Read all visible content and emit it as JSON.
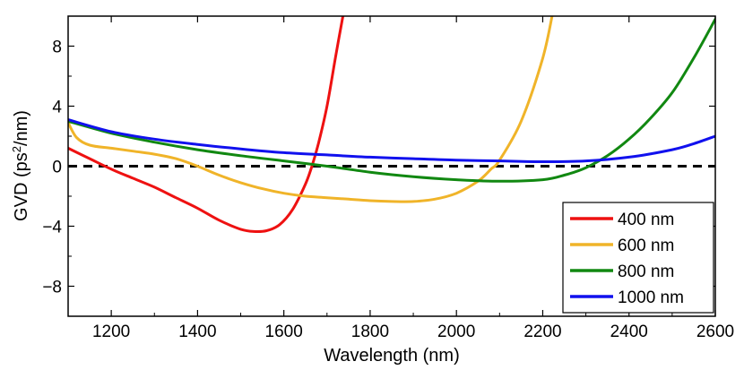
{
  "chart_data": {
    "type": "line",
    "title": "",
    "xlabel": "Wavelength (nm)",
    "ylabel_main": "GVD (ps",
    "ylabel_sup": "2",
    "ylabel_tail": "/nm)",
    "xlim": [
      1100,
      2600
    ],
    "ylim": [
      -10,
      10
    ],
    "x_ticks": [
      1200,
      1400,
      1600,
      1800,
      2000,
      2200,
      2400,
      2600
    ],
    "x_tick_labels": [
      "1200",
      "1400",
      "1600",
      "1800",
      "2000",
      "2200",
      "2400",
      "2600"
    ],
    "y_ticks": [
      -8,
      -4,
      0,
      4,
      8
    ],
    "y_tick_labels": [
      "−8",
      "−4",
      "0",
      "4",
      "8"
    ],
    "grid": false,
    "zero_line": {
      "y": 0,
      "style": "dashed",
      "color": "#000000"
    },
    "legend_position": "bottom-right",
    "series": [
      {
        "name": "400 nm",
        "color": "#ee1111",
        "points": [
          [
            1100,
            1.2
          ],
          [
            1150,
            0.5
          ],
          [
            1200,
            -0.2
          ],
          [
            1250,
            -0.8
          ],
          [
            1300,
            -1.4
          ],
          [
            1350,
            -2.1
          ],
          [
            1400,
            -2.8
          ],
          [
            1450,
            -3.6
          ],
          [
            1500,
            -4.2
          ],
          [
            1530,
            -4.35
          ],
          [
            1560,
            -4.3
          ],
          [
            1590,
            -3.9
          ],
          [
            1620,
            -2.9
          ],
          [
            1650,
            -1.2
          ],
          [
            1665,
            0
          ],
          [
            1680,
            1.5
          ],
          [
            1700,
            4.0
          ],
          [
            1720,
            7.3
          ],
          [
            1740,
            10.5
          ]
        ]
      },
      {
        "name": "600 nm",
        "color": "#f0b429",
        "points": [
          [
            1100,
            2.9
          ],
          [
            1120,
            1.9
          ],
          [
            1150,
            1.4
          ],
          [
            1200,
            1.2
          ],
          [
            1250,
            1.0
          ],
          [
            1300,
            0.8
          ],
          [
            1350,
            0.5
          ],
          [
            1400,
            0.0
          ],
          [
            1450,
            -0.6
          ],
          [
            1500,
            -1.1
          ],
          [
            1550,
            -1.5
          ],
          [
            1600,
            -1.8
          ],
          [
            1650,
            -2.0
          ],
          [
            1700,
            -2.1
          ],
          [
            1750,
            -2.2
          ],
          [
            1800,
            -2.3
          ],
          [
            1850,
            -2.35
          ],
          [
            1900,
            -2.35
          ],
          [
            1950,
            -2.2
          ],
          [
            2000,
            -1.8
          ],
          [
            2050,
            -1.0
          ],
          [
            2080,
            -0.2
          ],
          [
            2100,
            0.4
          ],
          [
            2150,
            3.0
          ],
          [
            2200,
            7.2
          ],
          [
            2225,
            10.5
          ]
        ]
      },
      {
        "name": "800 nm",
        "color": "#118811",
        "points": [
          [
            1100,
            3.0
          ],
          [
            1200,
            2.2
          ],
          [
            1300,
            1.6
          ],
          [
            1400,
            1.1
          ],
          [
            1500,
            0.7
          ],
          [
            1600,
            0.35
          ],
          [
            1700,
            0.0
          ],
          [
            1800,
            -0.4
          ],
          [
            1900,
            -0.7
          ],
          [
            2000,
            -0.9
          ],
          [
            2100,
            -1.0
          ],
          [
            2200,
            -0.9
          ],
          [
            2250,
            -0.6
          ],
          [
            2300,
            -0.1
          ],
          [
            2350,
            0.7
          ],
          [
            2400,
            1.8
          ],
          [
            2450,
            3.2
          ],
          [
            2500,
            4.9
          ],
          [
            2550,
            7.2
          ],
          [
            2600,
            9.8
          ]
        ]
      },
      {
        "name": "1000 nm",
        "color": "#1111ee",
        "points": [
          [
            1100,
            3.1
          ],
          [
            1200,
            2.3
          ],
          [
            1300,
            1.8
          ],
          [
            1400,
            1.45
          ],
          [
            1500,
            1.15
          ],
          [
            1600,
            0.9
          ],
          [
            1700,
            0.75
          ],
          [
            1800,
            0.6
          ],
          [
            1900,
            0.5
          ],
          [
            2000,
            0.4
          ],
          [
            2100,
            0.35
          ],
          [
            2200,
            0.3
          ],
          [
            2300,
            0.35
          ],
          [
            2400,
            0.6
          ],
          [
            2500,
            1.1
          ],
          [
            2550,
            1.5
          ],
          [
            2600,
            2.0
          ]
        ]
      }
    ]
  }
}
